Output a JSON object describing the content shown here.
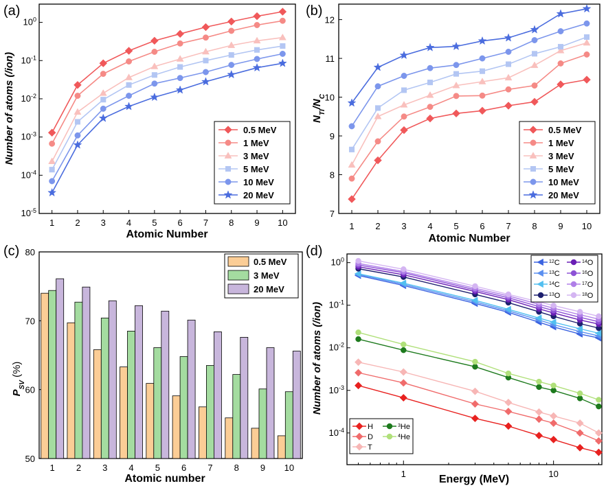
{
  "chart_data": [
    {
      "id": "a",
      "type": "line",
      "panel_label": "(a)",
      "xlabel": "Atomic Number",
      "ylabel": "Number of atoms (/ion)",
      "yscale": "log",
      "xlim": [
        0.5,
        10.5
      ],
      "ylim": [
        1e-05,
        3
      ],
      "x": [
        1,
        2,
        3,
        4,
        5,
        6,
        7,
        8,
        9,
        10
      ],
      "x_ticks": [
        "1",
        "2",
        "3",
        "4",
        "5",
        "6",
        "7",
        "8",
        "9",
        "10"
      ],
      "y_ticks": [
        {
          "v": 1e-05,
          "b": "10",
          "e": "-5"
        },
        {
          "v": 0.0001,
          "b": "10",
          "e": "-4"
        },
        {
          "v": 0.001,
          "b": "10",
          "e": "-3"
        },
        {
          "v": 0.01,
          "b": "10",
          "e": "-2"
        },
        {
          "v": 0.1,
          "b": "10",
          "e": "-1"
        },
        {
          "v": 1,
          "b": "10",
          "e": "0"
        }
      ],
      "legend_position": "bottom-right",
      "series": [
        {
          "name": "0.5 MeV",
          "color": "#f0585a",
          "marker": "diamond",
          "values": [
            0.0013,
            0.023,
            0.085,
            0.18,
            0.33,
            0.5,
            0.75,
            1.05,
            1.45,
            1.9
          ]
        },
        {
          "name": "1 MeV",
          "color": "#f58a86",
          "marker": "circle",
          "values": [
            0.00067,
            0.012,
            0.045,
            0.095,
            0.17,
            0.28,
            0.4,
            0.6,
            0.85,
            1.1
          ]
        },
        {
          "name": "3 MeV",
          "color": "#f9c0bd",
          "marker": "triangle",
          "values": [
            0.00023,
            0.0045,
            0.014,
            0.036,
            0.07,
            0.11,
            0.17,
            0.25,
            0.33,
            0.4
          ]
        },
        {
          "name": "5 MeV",
          "color": "#b3c6f3",
          "marker": "square",
          "values": [
            0.00014,
            0.0025,
            0.0095,
            0.023,
            0.042,
            0.068,
            0.1,
            0.14,
            0.19,
            0.24
          ]
        },
        {
          "name": "10 MeV",
          "color": "#7c96ec",
          "marker": "circle",
          "values": [
            7e-05,
            0.0011,
            0.0055,
            0.012,
            0.025,
            0.035,
            0.05,
            0.077,
            0.11,
            0.15
          ]
        },
        {
          "name": "20 MeV",
          "color": "#4a6cde",
          "marker": "star",
          "values": [
            3.5e-05,
            0.00062,
            0.0031,
            0.0063,
            0.011,
            0.017,
            0.028,
            0.043,
            0.065,
            0.085
          ]
        }
      ]
    },
    {
      "id": "b",
      "type": "line",
      "panel_label": "(b)",
      "xlabel": "Atomic Number",
      "ylabel_main": "N",
      "ylabel_sub1": "TI",
      "ylabel_mid": "/N",
      "ylabel_sub2": "C",
      "yscale": "linear",
      "xlim": [
        0.5,
        10.5
      ],
      "ylim": [
        7,
        12.4
      ],
      "x": [
        1,
        2,
        3,
        4,
        5,
        6,
        7,
        8,
        9,
        10
      ],
      "x_ticks": [
        "1",
        "2",
        "3",
        "4",
        "5",
        "6",
        "7",
        "8",
        "9",
        "10"
      ],
      "y_ticks": [
        "7",
        "8",
        "9",
        "10",
        "11",
        "12"
      ],
      "legend_position": "bottom-right",
      "series": [
        {
          "name": "0.5 MeV",
          "color": "#f0585a",
          "marker": "diamond",
          "values": [
            7.37,
            8.37,
            9.15,
            9.45,
            9.58,
            9.65,
            9.78,
            9.88,
            10.33,
            10.45
          ]
        },
        {
          "name": "1 MeV",
          "color": "#f58a86",
          "marker": "circle",
          "values": [
            7.9,
            8.86,
            9.5,
            9.75,
            10.03,
            10.04,
            10.2,
            10.3,
            10.87,
            11.1
          ]
        },
        {
          "name": "3 MeV",
          "color": "#f9c0bd",
          "marker": "triangle",
          "values": [
            8.25,
            9.5,
            9.8,
            10.05,
            10.3,
            10.4,
            10.5,
            10.82,
            11.2,
            11.4
          ]
        },
        {
          "name": "5 MeV",
          "color": "#b3c6f3",
          "marker": "square",
          "values": [
            8.65,
            9.72,
            10.18,
            10.38,
            10.6,
            10.67,
            10.85,
            11.12,
            11.3,
            11.55
          ]
        },
        {
          "name": "10 MeV",
          "color": "#7c96ec",
          "marker": "circle",
          "values": [
            9.25,
            10.28,
            10.55,
            10.75,
            10.83,
            11.0,
            11.17,
            11.47,
            11.7,
            11.9
          ]
        },
        {
          "name": "20 MeV",
          "color": "#4a6cde",
          "marker": "star",
          "values": [
            9.85,
            10.77,
            11.08,
            11.28,
            11.31,
            11.45,
            11.53,
            11.74,
            12.15,
            12.28
          ]
        }
      ]
    },
    {
      "id": "c",
      "type": "bar",
      "panel_label": "(c)",
      "xlabel": "Atomic number",
      "ylabel_main": "P",
      "ylabel_sub": "SV",
      "ylabel_unit": " (%)",
      "ylim": [
        50,
        80
      ],
      "categories": [
        "1",
        "2",
        "3",
        "4",
        "5",
        "6",
        "7",
        "8",
        "9",
        "10"
      ],
      "y_ticks": [
        "50",
        "60",
        "70",
        "80"
      ],
      "legend_position": "top-right",
      "series": [
        {
          "name": "0.5 MeV",
          "color": "#fbcd96",
          "values": [
            74.0,
            69.7,
            65.8,
            63.3,
            60.9,
            59.1,
            57.5,
            55.9,
            54.4,
            53.3
          ]
        },
        {
          "name": "3 MeV",
          "color": "#a4dca0",
          "values": [
            74.4,
            72.7,
            70.4,
            68.5,
            66.1,
            64.8,
            63.5,
            62.2,
            60.1,
            59.7
          ]
        },
        {
          "name": "20 MeV",
          "color": "#c8b6dc",
          "values": [
            76.1,
            74.9,
            72.9,
            72.2,
            71.4,
            70.1,
            68.4,
            67.6,
            66.1,
            65.6
          ]
        }
      ]
    },
    {
      "id": "d",
      "type": "line",
      "panel_label": "(d)",
      "xlabel": "Energy (MeV)",
      "ylabel": "Number of atoms (/ion)",
      "xscale": "log",
      "yscale": "log",
      "xlim": [
        0.42,
        21
      ],
      "ylim": [
        1.8e-05,
        1.6
      ],
      "x": [
        0.5,
        1,
        3,
        5,
        8,
        10,
        15,
        20
      ],
      "x_ticks": [
        {
          "v": 1,
          "label": "1"
        },
        {
          "v": 10,
          "label": "10"
        }
      ],
      "y_ticks": [
        {
          "v": 0.0001,
          "b": "10",
          "e": "-4"
        },
        {
          "v": 0.001,
          "b": "10",
          "e": "-3"
        },
        {
          "v": 0.01,
          "b": "10",
          "e": "-2"
        },
        {
          "v": 0.1,
          "b": "10",
          "e": "-1"
        },
        {
          "v": 1,
          "b": "10",
          "e": "0"
        }
      ],
      "legend_top": {
        "position": "top-right",
        "entries": [
          {
            "sup": "12",
            "el": "C"
          },
          {
            "sup": "14",
            "el": "O"
          },
          {
            "sup": "13",
            "el": "C"
          },
          {
            "sup": "16",
            "el": "O"
          },
          {
            "sup": "14",
            "el": "C"
          },
          {
            "sup": "17",
            "el": "O"
          },
          {
            "sup": "13",
            "el": "O"
          },
          {
            "sup": "18",
            "el": "O"
          }
        ]
      },
      "legend_bottom": {
        "position": "bottom-left",
        "entries": [
          {
            "sup": "",
            "el": "H"
          },
          {
            "sup": "3",
            "el": "He"
          },
          {
            "sup": "",
            "el": "D"
          },
          {
            "sup": "4",
            "el": "He"
          },
          {
            "sup": "",
            "el": "T"
          }
        ]
      },
      "series": [
        {
          "name": "12C",
          "color": "#3b63e0",
          "marker": "triangle-left",
          "values": [
            0.5,
            0.29,
            0.11,
            0.068,
            0.04,
            0.031,
            0.021,
            0.017
          ]
        },
        {
          "name": "13C",
          "color": "#5a8ff0",
          "marker": "triangle-left",
          "values": [
            0.53,
            0.31,
            0.12,
            0.074,
            0.045,
            0.035,
            0.024,
            0.019
          ]
        },
        {
          "name": "14C",
          "color": "#52bff0",
          "marker": "triangle-left",
          "values": [
            0.55,
            0.33,
            0.13,
            0.08,
            0.05,
            0.04,
            0.028,
            0.022
          ]
        },
        {
          "name": "13O",
          "color": "#1c1f6e",
          "marker": "circle",
          "values": [
            0.72,
            0.46,
            0.18,
            0.115,
            0.07,
            0.055,
            0.037,
            0.029
          ]
        },
        {
          "name": "14O",
          "color": "#6a1fb5",
          "marker": "circle",
          "values": [
            0.8,
            0.52,
            0.21,
            0.135,
            0.082,
            0.066,
            0.045,
            0.036
          ]
        },
        {
          "name": "16O",
          "color": "#8d52d6",
          "marker": "circle",
          "values": [
            0.88,
            0.58,
            0.23,
            0.15,
            0.093,
            0.075,
            0.052,
            0.041
          ]
        },
        {
          "name": "17O",
          "color": "#b07fe8",
          "marker": "circle",
          "values": [
            0.96,
            0.62,
            0.25,
            0.165,
            0.105,
            0.085,
            0.06,
            0.047
          ]
        },
        {
          "name": "18O",
          "color": "#d4b5f2",
          "marker": "circle",
          "values": [
            1.1,
            0.7,
            0.28,
            0.18,
            0.12,
            0.098,
            0.07,
            0.055
          ]
        },
        {
          "name": "H",
          "color": "#e8211f",
          "marker": "diamond",
          "values": [
            0.0013,
            0.00067,
            0.00022,
            0.000145,
            8.7e-05,
            7e-05,
            4.5e-05,
            3.5e-05
          ]
        },
        {
          "name": "D",
          "color": "#f06b6b",
          "marker": "diamond",
          "values": [
            0.0026,
            0.0015,
            0.00048,
            0.00032,
            0.00021,
            0.00017,
            0.0001,
            6.5e-05
          ]
        },
        {
          "name": "T",
          "color": "#f7b6b5",
          "marker": "diamond",
          "values": [
            0.0046,
            0.0027,
            0.00095,
            0.00052,
            0.00031,
            0.00025,
            0.00017,
            0.0001
          ]
        },
        {
          "name": "3He",
          "color": "#1d7a1d",
          "marker": "circle",
          "values": [
            0.016,
            0.0088,
            0.0036,
            0.002,
            0.0012,
            0.001,
            0.00065,
            0.00042
          ]
        },
        {
          "name": "4He",
          "color": "#b0e07a",
          "marker": "circle",
          "values": [
            0.023,
            0.012,
            0.0047,
            0.0025,
            0.0016,
            0.0013,
            0.00085,
            0.0006
          ]
        }
      ]
    }
  ]
}
